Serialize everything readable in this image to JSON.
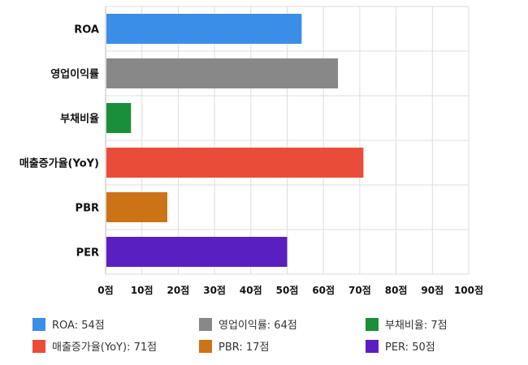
{
  "chart_data": {
    "type": "bar",
    "orientation": "horizontal",
    "categories": [
      "ROA",
      "영업이익률",
      "부채비율",
      "매출증가율(YoY)",
      "PBR",
      "PER"
    ],
    "values": [
      54,
      64,
      7,
      71,
      17,
      50
    ],
    "colors": [
      "#3b8ee8",
      "#888888",
      "#1a8f3a",
      "#ea4c3a",
      "#cc7317",
      "#5a1fc0"
    ],
    "xlim": [
      0,
      100
    ],
    "xticks": [
      "0점",
      "10점",
      "20점",
      "30점",
      "40점",
      "50점",
      "60점",
      "70점",
      "80점",
      "90점",
      "100점"
    ],
    "grid": true,
    "legend_position": "bottom",
    "legend": [
      "ROA: 54점",
      "영업이익률: 64점",
      "부채비율: 7점",
      "매출증가율(YoY): 71점",
      "PBR: 17점",
      "PER: 50점"
    ]
  }
}
